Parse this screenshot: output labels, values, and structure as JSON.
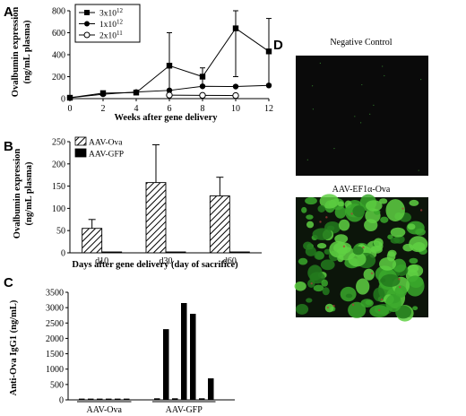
{
  "panels": {
    "a": "A",
    "b": "B",
    "c": "C",
    "d": "D"
  },
  "chart_data": [
    {
      "id": "A",
      "type": "line",
      "xlabel": "Weeks after gene delivery",
      "ylabel_1": "Ovalbumin expression",
      "ylabel_2": "(ng/mL plasma)",
      "x": [
        0,
        2,
        4,
        6,
        8,
        10,
        12
      ],
      "xlim": [
        0,
        12
      ],
      "ylim": [
        0,
        800
      ],
      "x_ticks": [
        "0",
        "2",
        "4",
        "6",
        "8",
        "10",
        "12"
      ],
      "y_ticks": [
        "0",
        "200",
        "400",
        "600",
        "800"
      ],
      "legend_position": "top-left",
      "series": [
        {
          "name": "3x10",
          "exp": "12",
          "marker": "square",
          "values": [
            8,
            50,
            55,
            300,
            200,
            640,
            430
          ],
          "err": [
            null,
            null,
            null,
            300,
            80,
            440,
            300
          ]
        },
        {
          "name": "1x10",
          "exp": "12",
          "marker": "circle",
          "values": [
            8,
            40,
            60,
            75,
            112,
            110,
            120
          ],
          "err": [
            null,
            null,
            null,
            null,
            null,
            null,
            null
          ]
        },
        {
          "name": "2x10",
          "exp": "11",
          "marker": "open-circle",
          "values": [
            null,
            null,
            null,
            32,
            30,
            28,
            null
          ],
          "err": [
            null,
            null,
            null,
            null,
            null,
            null,
            null
          ]
        }
      ]
    },
    {
      "id": "B",
      "type": "bar",
      "xlabel": "Days after gene delivery (day of sacrifice)",
      "ylabel_1": "Ovalbumin expression",
      "ylabel_2": "(ng/mL plasma)",
      "categories": [
        "d10",
        "d30",
        "d60"
      ],
      "ylim": [
        0,
        250
      ],
      "y_ticks": [
        "0",
        "50",
        "100",
        "150",
        "200",
        "250"
      ],
      "legend_position": "top-left",
      "series": [
        {
          "name": "AAV-Ova",
          "pattern": "hatched",
          "values": [
            55,
            158,
            128
          ],
          "err": [
            20,
            85,
            42
          ]
        },
        {
          "name": "AAV-GFP",
          "pattern": "solid",
          "values": [
            2,
            2,
            2
          ],
          "err": [
            null,
            null,
            null
          ]
        }
      ]
    },
    {
      "id": "C",
      "type": "bar",
      "ylabel": "Anti-Ova IgG1 (ng/mL)",
      "ylim": [
        0,
        3500
      ],
      "y_ticks": [
        "0",
        "500",
        "1000",
        "1500",
        "2000",
        "2500",
        "3000",
        "3500"
      ],
      "groups": [
        {
          "label": "AAV-Ova",
          "values": [
            40,
            40,
            40,
            40,
            40,
            40
          ]
        },
        {
          "label": "AAV-GFP",
          "values": [
            50,
            2300,
            50,
            3150,
            2800,
            50,
            700
          ]
        }
      ]
    }
  ],
  "images": {
    "negative_control_label": "Negative Control",
    "ova_label_prefix": "AAV-EF1",
    "ova_label_alpha": "α",
    "ova_label_suffix": "-Ova"
  }
}
